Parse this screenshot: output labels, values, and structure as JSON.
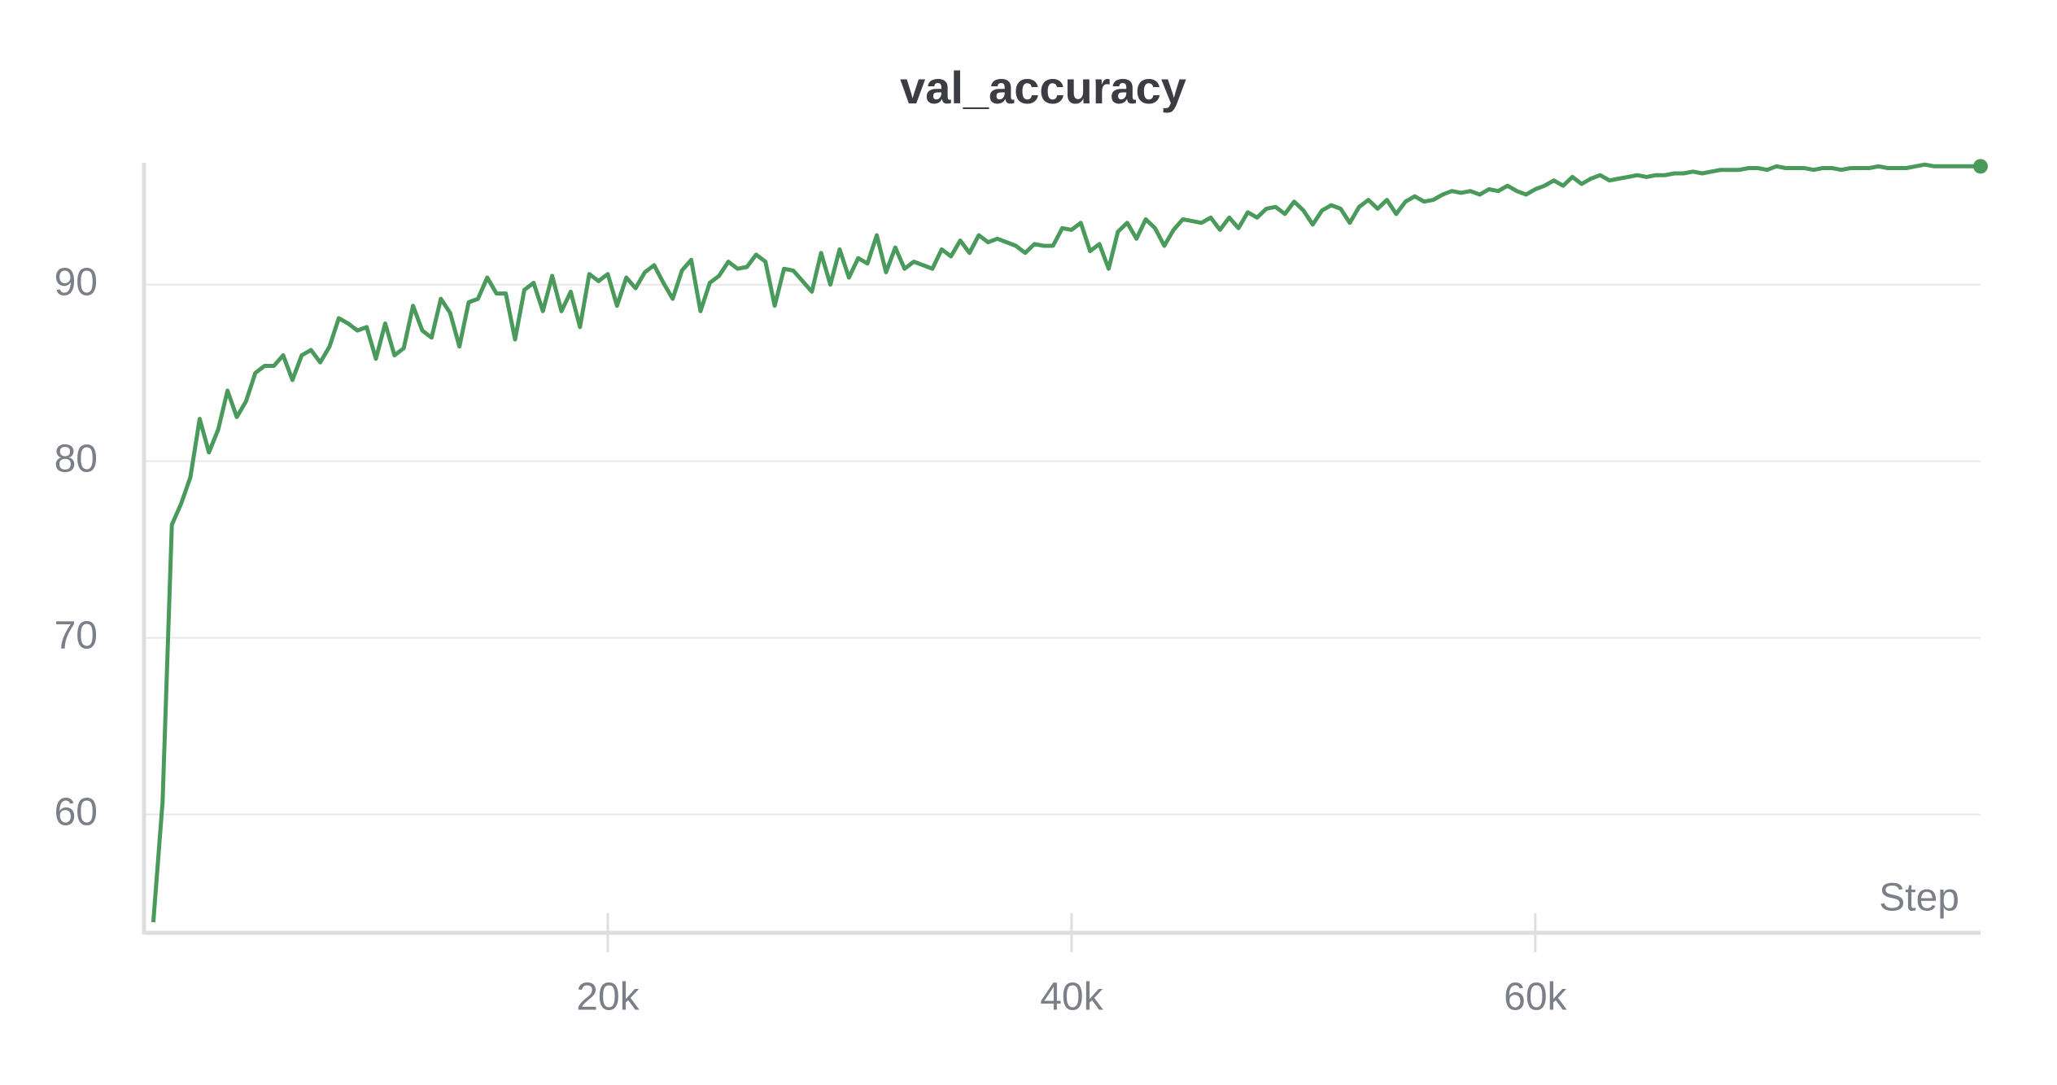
{
  "chart_data": {
    "type": "line",
    "title": "val_accuracy",
    "x_label": "Step",
    "color": "#4a9a5c",
    "xlim": [
      0,
      79200
    ],
    "ylim": [
      53.3,
      96.9
    ],
    "xticks": [
      {
        "value": 20000,
        "label": "20k"
      },
      {
        "value": 40000,
        "label": "40k"
      },
      {
        "value": 60000,
        "label": "60k"
      }
    ],
    "yticks": [
      60,
      70,
      80,
      90
    ],
    "grid": true,
    "x": [
      400,
      800,
      1200,
      1600,
      2000,
      2400,
      2800,
      3200,
      3600,
      4000,
      4400,
      4800,
      5200,
      5600,
      6000,
      6400,
      6800,
      7200,
      7600,
      8000,
      8400,
      8800,
      9200,
      9600,
      10000,
      10400,
      10800,
      11200,
      11600,
      12000,
      12400,
      12800,
      13200,
      13600,
      14000,
      14400,
      14800,
      15200,
      15600,
      16000,
      16400,
      16800,
      17200,
      17600,
      18000,
      18400,
      18800,
      19200,
      19600,
      20000,
      20400,
      20800,
      21200,
      21600,
      22000,
      22400,
      22800,
      23200,
      23600,
      24000,
      24400,
      24800,
      25200,
      25600,
      26000,
      26400,
      26800,
      27200,
      27600,
      28000,
      28400,
      28800,
      29200,
      29600,
      30000,
      30400,
      30800,
      31200,
      31600,
      32000,
      32400,
      32800,
      33200,
      33600,
      34000,
      34400,
      34800,
      35200,
      35600,
      36000,
      36400,
      36800,
      37200,
      37600,
      38000,
      38400,
      38800,
      39200,
      39600,
      40000,
      40400,
      40800,
      41200,
      41600,
      42000,
      42400,
      42800,
      43200,
      43600,
      44000,
      44400,
      44800,
      45200,
      45600,
      46000,
      46400,
      46800,
      47200,
      47600,
      48000,
      48400,
      48800,
      49200,
      49600,
      50000,
      50400,
      50800,
      51200,
      51600,
      52000,
      52400,
      52800,
      53200,
      53600,
      54000,
      54400,
      54800,
      55200,
      55600,
      56000,
      56400,
      56800,
      57200,
      57600,
      58000,
      58400,
      58800,
      59200,
      59600,
      60000,
      60400,
      60800,
      61200,
      61600,
      62000,
      62400,
      62800,
      63200,
      63600,
      64000,
      64400,
      64800,
      65200,
      65600,
      66000,
      66400,
      66800,
      67200,
      67600,
      68000,
      68400,
      68800,
      69200,
      69600,
      70000,
      70400,
      70800,
      71200,
      71600,
      72000,
      72400,
      72800,
      73200,
      73600,
      74000,
      74400,
      74800,
      75200,
      75600,
      76000,
      76400,
      76800,
      77200,
      77600,
      78000,
      78400,
      78800,
      79200
    ],
    "values": [
      53.9,
      60.7,
      76.4,
      77.6,
      79.1,
      82.4,
      80.5,
      81.8,
      84.0,
      82.5,
      83.4,
      85.0,
      85.4,
      85.4,
      86.0,
      84.6,
      86.0,
      86.3,
      85.6,
      86.5,
      88.1,
      87.8,
      87.4,
      87.6,
      85.8,
      87.8,
      86.0,
      86.4,
      88.8,
      87.4,
      87.0,
      89.2,
      88.4,
      86.5,
      89.0,
      89.2,
      90.4,
      89.5,
      89.5,
      86.9,
      89.7,
      90.1,
      88.5,
      90.5,
      88.5,
      89.6,
      87.6,
      90.6,
      90.2,
      90.6,
      88.8,
      90.4,
      89.8,
      90.7,
      91.1,
      90.1,
      89.2,
      90.8,
      91.4,
      88.5,
      90.1,
      90.5,
      91.3,
      90.9,
      91.0,
      91.7,
      91.3,
      88.8,
      90.9,
      90.8,
      90.2,
      89.6,
      91.8,
      90.0,
      92.0,
      90.4,
      91.5,
      91.2,
      92.8,
      90.7,
      92.1,
      90.9,
      91.3,
      91.1,
      90.9,
      92.0,
      91.6,
      92.5,
      91.8,
      92.8,
      92.4,
      92.6,
      92.4,
      92.2,
      91.8,
      92.3,
      92.2,
      92.2,
      93.2,
      93.1,
      93.5,
      91.9,
      92.3,
      90.9,
      93.0,
      93.5,
      92.6,
      93.7,
      93.2,
      92.2,
      93.1,
      93.7,
      93.6,
      93.5,
      93.8,
      93.1,
      93.8,
      93.2,
      94.1,
      93.8,
      94.3,
      94.4,
      94.0,
      94.7,
      94.2,
      93.4,
      94.2,
      94.5,
      94.3,
      93.5,
      94.4,
      94.8,
      94.3,
      94.8,
      94.0,
      94.7,
      95.0,
      94.7,
      94.8,
      95.1,
      95.3,
      95.2,
      95.3,
      95.1,
      95.4,
      95.3,
      95.6,
      95.3,
      95.1,
      95.4,
      95.6,
      95.9,
      95.6,
      96.1,
      95.7,
      96.0,
      96.2,
      95.9,
      96.0,
      96.1,
      96.2,
      96.1,
      96.2,
      96.2,
      96.3,
      96.3,
      96.4,
      96.3,
      96.4,
      96.5,
      96.5,
      96.5,
      96.6,
      96.6,
      96.5,
      96.7,
      96.6,
      96.6,
      96.6,
      96.5,
      96.6,
      96.6,
      96.5,
      96.6,
      96.6,
      96.6,
      96.7,
      96.6,
      96.6,
      96.6,
      96.7,
      96.8,
      96.7,
      96.7,
      96.7,
      96.7,
      96.7,
      96.7
    ]
  }
}
